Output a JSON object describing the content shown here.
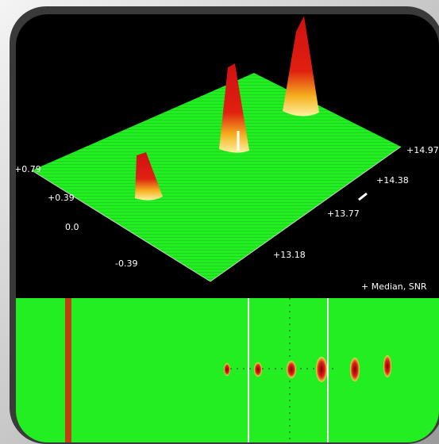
{
  "surface_view": {
    "y_axis_labels": [
      "+0.79",
      "+0.39",
      "0.0",
      "-0.39"
    ],
    "x_axis_labels": [
      "+14.97",
      "+14.38",
      "+13.77",
      "+13.18"
    ],
    "status_text": "+ Median, SNR"
  }
}
